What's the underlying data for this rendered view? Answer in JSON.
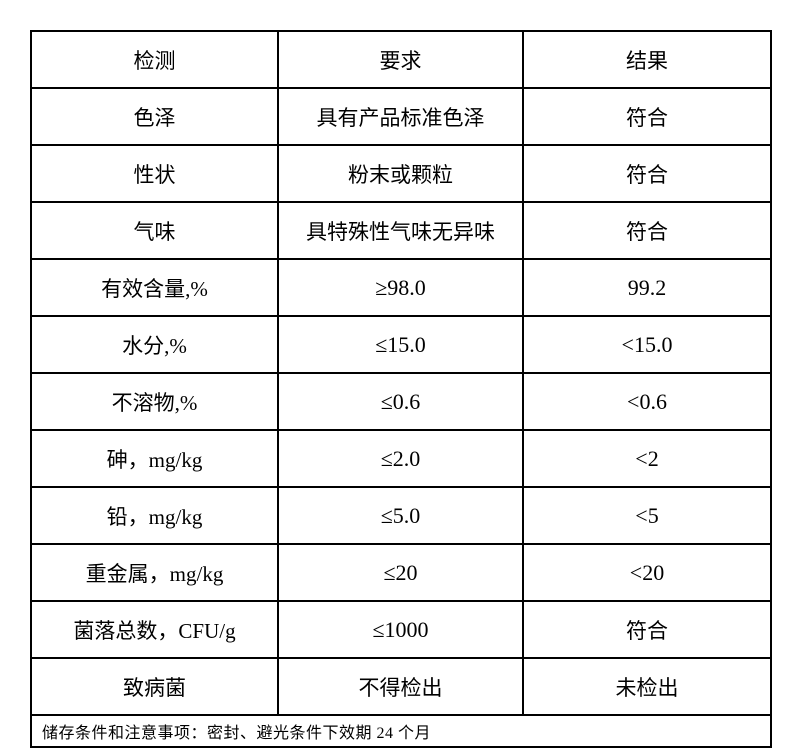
{
  "document": {
    "type": "inspection-spec-table",
    "columns": [
      "检测",
      "要求",
      "结果"
    ],
    "rows": [
      {
        "test": "色泽",
        "requirement": "具有产品标准色泽",
        "result": "符合"
      },
      {
        "test": "性状",
        "requirement": "粉末或颗粒",
        "result": "符合"
      },
      {
        "test": "气味",
        "requirement": "具特殊性气味无异味",
        "result": "符合"
      },
      {
        "test": "有效含量,%",
        "requirement": "≥98.0",
        "result": "99.2"
      },
      {
        "test": "水分,%",
        "requirement": "≤15.0",
        "result": "<15.0"
      },
      {
        "test": "不溶物,%",
        "requirement": "≤0.6",
        "result": "<0.6"
      },
      {
        "test": "砷，mg/kg",
        "requirement": "≤2.0",
        "result": "<2"
      },
      {
        "test": "铅，mg/kg",
        "requirement": "≤5.0",
        "result": "<5"
      },
      {
        "test": "重金属，mg/kg",
        "requirement": "≤20",
        "result": "<20"
      },
      {
        "test": "菌落总数，CFU/g",
        "requirement": "≤1000",
        "result": "符合"
      },
      {
        "test": "致病菌",
        "requirement": "不得检出",
        "result": "未检出"
      }
    ],
    "footer_note": "储存条件和注意事项：密封、避光条件下效期 24 个月"
  },
  "colors": {
    "border": "#000000",
    "text": "#000000",
    "page_background": "#ffffff"
  }
}
